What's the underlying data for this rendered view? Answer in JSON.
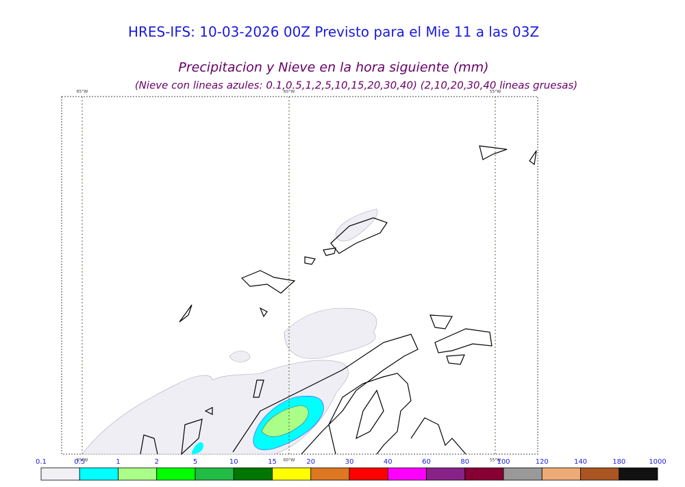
{
  "header": {
    "title": "HRES-IFS: 10-03-2026 00Z Previsto para el Mie 11 a las 03Z",
    "subtitle": "Precipitacion y Nieve en la hora siguiente (mm)",
    "note": "(Nieve con lineas azules: 0.1,0.5,1,2,5,10,15,20,30,40)  (2,10,20,30,40 lineas gruesas)"
  },
  "map": {
    "lon_labels": [
      "65°W",
      "60°W",
      "55°W"
    ]
  },
  "colorbar": {
    "bounds": [
      0.1,
      0.5,
      1,
      2,
      5,
      10,
      15,
      20,
      30,
      40,
      60,
      80,
      100,
      120,
      140,
      180,
      1000
    ],
    "colors": [
      "#f0f0f5",
      "#00ffff",
      "#aaff88",
      "#00ff00",
      "#22bb44",
      "#007700",
      "#ffff00",
      "#dd7722",
      "#ff0000",
      "#ff00ff",
      "#882288",
      "#880033",
      "#999999",
      "#eeaa77",
      "#aa5522",
      "#111111"
    ]
  }
}
